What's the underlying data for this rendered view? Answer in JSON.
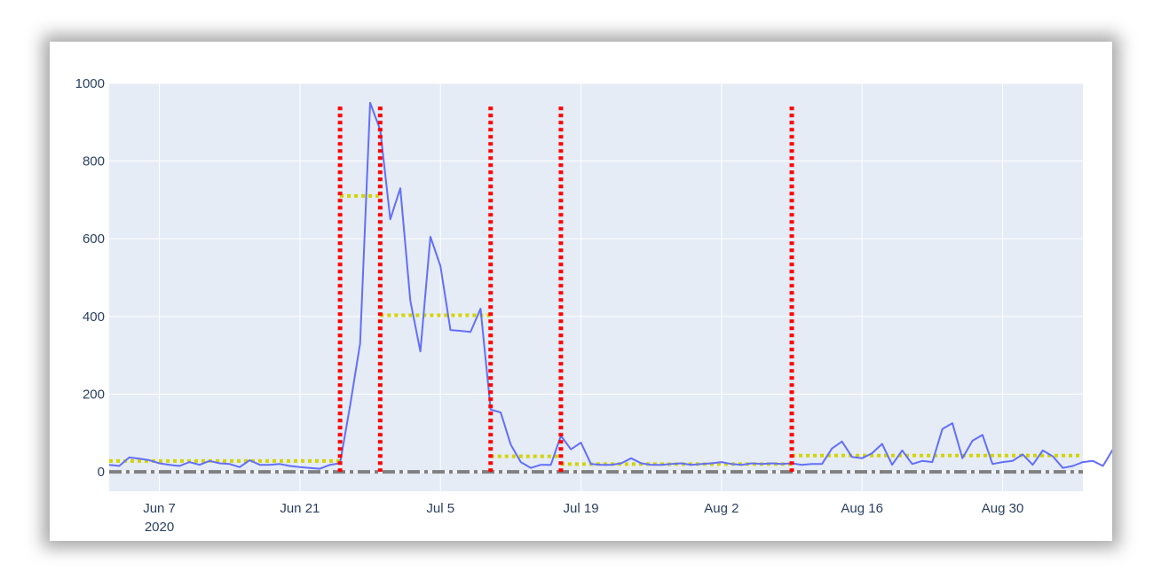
{
  "chart_data": {
    "type": "line",
    "title": "",
    "xlabel": "",
    "ylabel": "",
    "x_start": "2020-06-02",
    "x_range": [
      "2020-06-02",
      "2020-09-07"
    ],
    "ylim": [
      -50,
      1000
    ],
    "y_ticks": [
      0,
      200,
      400,
      600,
      800,
      1000
    ],
    "x_ticks": [
      {
        "date": "2020-06-07",
        "label": "Jun 7",
        "sublabel": "2020"
      },
      {
        "date": "2020-06-21",
        "label": "Jun 21",
        "sublabel": ""
      },
      {
        "date": "2020-07-05",
        "label": "Jul 5",
        "sublabel": ""
      },
      {
        "date": "2020-07-19",
        "label": "Jul 19",
        "sublabel": ""
      },
      {
        "date": "2020-08-02",
        "label": "Aug 2",
        "sublabel": ""
      },
      {
        "date": "2020-08-16",
        "label": "Aug 16",
        "sublabel": ""
      },
      {
        "date": "2020-08-30",
        "label": "Aug 30",
        "sublabel": ""
      }
    ],
    "grid": true,
    "colors": {
      "background": "#e5ecf6",
      "grid": "#ffffff",
      "series": "#636efa",
      "changepoints": "#ff0000",
      "segment_means": "#d4d400",
      "baseline": "#808080"
    },
    "series": [
      {
        "values": [
          18,
          15,
          37,
          34,
          30,
          22,
          18,
          15,
          25,
          18,
          28,
          22,
          20,
          12,
          30,
          18,
          18,
          20,
          15,
          12,
          10,
          8,
          18,
          22,
          170,
          330,
          950,
          880,
          650,
          730,
          440,
          310,
          605,
          530,
          365,
          363,
          360,
          420,
          160,
          153,
          70,
          25,
          10,
          18,
          18,
          93,
          58,
          75,
          20,
          18,
          18,
          22,
          35,
          22,
          18,
          18,
          20,
          22,
          18,
          20,
          22,
          25,
          20,
          18,
          22,
          20,
          22,
          20,
          22,
          18,
          20,
          20,
          60,
          78,
          38,
          35,
          48,
          72,
          18,
          55,
          20,
          28,
          25,
          110,
          125,
          35,
          80,
          95,
          20,
          25,
          28,
          45,
          18,
          55,
          40,
          10,
          15,
          25,
          28,
          15,
          58
        ]
      }
    ],
    "changepoints": [
      "2020-06-25",
      "2020-06-29",
      "2020-07-10",
      "2020-07-17",
      "2020-08-09"
    ],
    "segment_means": [
      {
        "start": "2020-06-02",
        "end": "2020-06-25",
        "value": 28
      },
      {
        "start": "2020-06-25",
        "end": "2020-06-29",
        "value": 710
      },
      {
        "start": "2020-06-29",
        "end": "2020-07-10",
        "value": 403
      },
      {
        "start": "2020-07-10",
        "end": "2020-07-17",
        "value": 40
      },
      {
        "start": "2020-07-17",
        "end": "2020-08-09",
        "value": 20
      },
      {
        "start": "2020-08-09",
        "end": "2020-09-07",
        "value": 42
      }
    ],
    "baseline": 0
  }
}
